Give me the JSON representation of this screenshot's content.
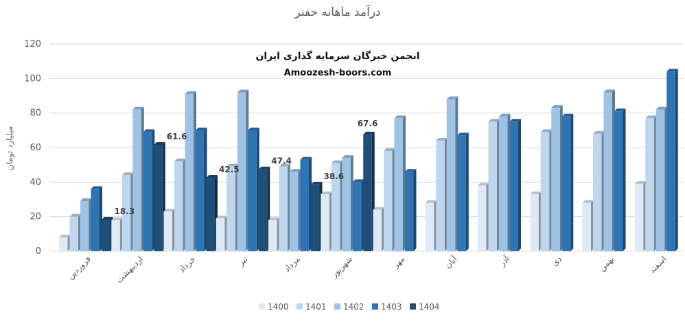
{
  "chart_data": {
    "type": "bar",
    "title": "درآمد ماهانه خفنر",
    "ylabel": "میلیارد تومان",
    "xlabel": "",
    "ylim": [
      0,
      120
    ],
    "yticks": [
      0,
      20,
      40,
      60,
      80,
      100,
      120
    ],
    "grid": true,
    "legend_position": "bottom",
    "categories": [
      "فروردین",
      "اردیبهشت",
      "خرداد",
      "تیر",
      "مرداد",
      "شهریور",
      "مهر",
      "آبان",
      "آذر",
      "دی",
      "بهمن",
      "اسفند"
    ],
    "series": [
      {
        "name": "1400",
        "color": "#deebf7",
        "values": [
          8,
          18,
          23,
          19,
          18,
          33,
          24,
          28,
          38,
          33,
          28,
          39
        ]
      },
      {
        "name": "1401",
        "color": "#bdd7ee",
        "values": [
          20,
          44,
          52,
          49,
          49,
          51,
          58,
          64,
          75,
          69,
          68,
          77
        ]
      },
      {
        "name": "1402",
        "color": "#9dc3e6",
        "values": [
          29,
          82,
          91,
          92,
          46,
          54,
          77,
          88,
          78,
          83,
          92,
          82
        ]
      },
      {
        "name": "1403",
        "color": "#2e75b6",
        "values": [
          36,
          69,
          70,
          70,
          53,
          40,
          46,
          67,
          75,
          78,
          81,
          104
        ]
      },
      {
        "name": "1404",
        "color": "#1f4e79",
        "values": [
          18.3,
          61.6,
          42.5,
          47.4,
          38.6,
          67.6,
          null,
          null,
          null,
          null,
          null,
          null
        ]
      }
    ],
    "data_labels": [
      {
        "series": "1404",
        "category_index": 0,
        "text": "18.3"
      },
      {
        "series": "1404",
        "category_index": 1,
        "text": "61.6"
      },
      {
        "series": "1404",
        "category_index": 2,
        "text": "42.5"
      },
      {
        "series": "1404",
        "category_index": 3,
        "text": "47.4"
      },
      {
        "series": "1404",
        "category_index": 4,
        "text": "38.6"
      },
      {
        "series": "1404",
        "category_index": 5,
        "text": "67.6"
      }
    ],
    "watermark": {
      "line1": "انجمن خبرگان سرمایه گذاری ایران",
      "line2": "Amoozesh-boors.com"
    }
  }
}
